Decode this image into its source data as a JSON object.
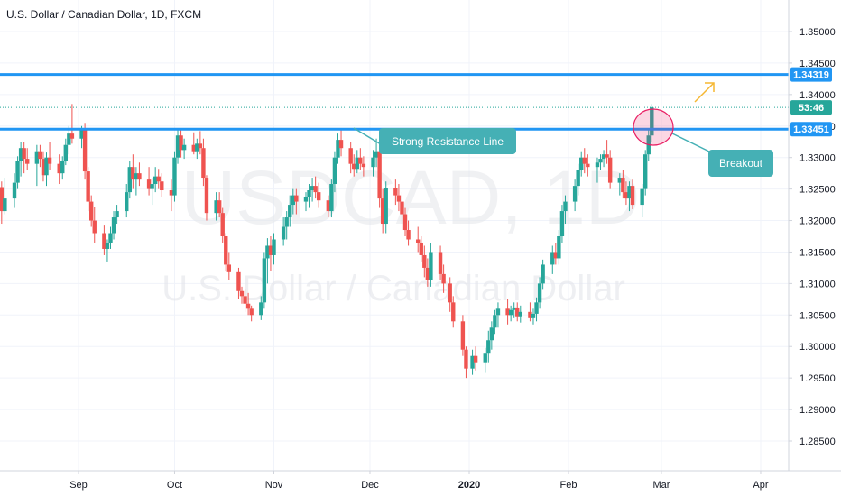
{
  "title": "U.S. Dollar / Canadian Dollar, 1D, FXCM",
  "watermark": {
    "symbol": "USDCAD, 1D",
    "name": "U.S. Dollar / Canadian Dollar"
  },
  "colors": {
    "up": "#26a69a",
    "down": "#ef5350",
    "line": "#2196f3",
    "callout": "#45b0b5",
    "arrow": "#f5b731",
    "ellipse": "#e91e63"
  },
  "price_ticks": [
    "1.35000",
    "1.34500",
    "1.34000",
    "1.33500",
    "1.33000",
    "1.32500",
    "1.32000",
    "1.31500",
    "1.31000",
    "1.30500",
    "1.30000",
    "1.29500",
    "1.29000",
    "1.28500"
  ],
  "time_ticks": [
    "Sep",
    "Oct",
    "Nov",
    "Dec",
    "2020",
    "Feb",
    "Mar",
    "Apr"
  ],
  "tags": {
    "upper": "1.34319",
    "countdown": "53:46",
    "lower": "1.33451"
  },
  "callouts": {
    "resistance": "Strong Resistance Line",
    "breakout": "Breakout"
  },
  "chart_data": {
    "type": "candlestick",
    "title": "U.S. Dollar / Canadian Dollar, 1D, FXCM",
    "ylim": [
      1.2825,
      1.3545
    ],
    "x_range": [
      "2019-08-08",
      "2020-04-15"
    ],
    "horizontal_lines": [
      {
        "label": "1.34319",
        "value": 1.34319
      },
      {
        "label": "1.33451",
        "value": 1.33451
      }
    ],
    "current_price": 1.33795,
    "ohlc": [
      [
        "2019-08-08",
        1.3253,
        1.3262,
        1.3195,
        1.3215
      ],
      [
        "2019-08-09",
        1.3215,
        1.3268,
        1.321,
        1.3235
      ],
      [
        "2019-08-12",
        1.3235,
        1.3275,
        1.322,
        1.326
      ],
      [
        "2019-08-13",
        1.326,
        1.3302,
        1.325,
        1.3295
      ],
      [
        "2019-08-14",
        1.3295,
        1.3325,
        1.327,
        1.3315
      ],
      [
        "2019-08-15",
        1.3315,
        1.3325,
        1.3275,
        1.3298
      ],
      [
        "2019-08-16",
        1.3298,
        1.3315,
        1.328,
        1.329
      ],
      [
        "2019-08-19",
        1.329,
        1.332,
        1.3255,
        1.331
      ],
      [
        "2019-08-20",
        1.331,
        1.332,
        1.3285,
        1.3298
      ],
      [
        "2019-08-21",
        1.3298,
        1.331,
        1.3262,
        1.3272
      ],
      [
        "2019-08-22",
        1.3272,
        1.3308,
        1.3255,
        1.33
      ],
      [
        "2019-08-23",
        1.33,
        1.3325,
        1.328,
        1.329
      ],
      [
        "2019-08-26",
        1.329,
        1.3305,
        1.3258,
        1.3275
      ],
      [
        "2019-08-27",
        1.3275,
        1.3302,
        1.3265,
        1.3295
      ],
      [
        "2019-08-28",
        1.3295,
        1.333,
        1.3288,
        1.332
      ],
      [
        "2019-08-29",
        1.332,
        1.335,
        1.3305,
        1.3338
      ],
      [
        "2019-08-30",
        1.3338,
        1.3385,
        1.3322,
        1.333
      ],
      [
        "2019-09-02",
        1.333,
        1.335,
        1.3315,
        1.3345
      ],
      [
        "2019-09-03",
        1.3345,
        1.3355,
        1.3265,
        1.3278
      ],
      [
        "2019-09-04",
        1.3278,
        1.3285,
        1.3215,
        1.323
      ],
      [
        "2019-09-05",
        1.323,
        1.324,
        1.319,
        1.32
      ],
      [
        "2019-09-06",
        1.32,
        1.3222,
        1.3165,
        1.318
      ],
      [
        "2019-09-09",
        1.318,
        1.3192,
        1.3145,
        1.3155
      ],
      [
        "2019-09-10",
        1.3155,
        1.317,
        1.3135,
        1.3165
      ],
      [
        "2019-09-11",
        1.3165,
        1.319,
        1.3155,
        1.318
      ],
      [
        "2019-09-12",
        1.318,
        1.3215,
        1.317,
        1.3205
      ],
      [
        "2019-09-13",
        1.3205,
        1.3225,
        1.3195,
        1.3215
      ],
      [
        "2019-09-16",
        1.3215,
        1.3258,
        1.3205,
        1.3245
      ],
      [
        "2019-09-17",
        1.3245,
        1.3295,
        1.3235,
        1.3285
      ],
      [
        "2019-09-18",
        1.3285,
        1.3305,
        1.325,
        1.3265
      ],
      [
        "2019-09-19",
        1.3265,
        1.3285,
        1.324,
        1.3275
      ],
      [
        "2019-09-20",
        1.3275,
        1.3292,
        1.3255,
        1.3265
      ],
      [
        "2019-09-23",
        1.3265,
        1.3285,
        1.324,
        1.325
      ],
      [
        "2019-09-24",
        1.325,
        1.3268,
        1.3225,
        1.3258
      ],
      [
        "2019-09-25",
        1.3258,
        1.3285,
        1.3245,
        1.327
      ],
      [
        "2019-09-26",
        1.327,
        1.3282,
        1.325,
        1.3262
      ],
      [
        "2019-09-27",
        1.3262,
        1.3275,
        1.3238,
        1.3248
      ],
      [
        "2019-09-30",
        1.3248,
        1.3265,
        1.3215,
        1.324
      ],
      [
        "2019-10-01",
        1.324,
        1.331,
        1.323,
        1.33
      ],
      [
        "2019-10-02",
        1.33,
        1.3345,
        1.329,
        1.3335
      ],
      [
        "2019-10-03",
        1.3335,
        1.3345,
        1.33,
        1.3312
      ],
      [
        "2019-10-04",
        1.3312,
        1.333,
        1.3298,
        1.332
      ],
      [
        "2019-10-07",
        1.332,
        1.334,
        1.3305,
        1.331
      ],
      [
        "2019-10-08",
        1.331,
        1.333,
        1.3298,
        1.3322
      ],
      [
        "2019-10-09",
        1.3322,
        1.3342,
        1.3305,
        1.3315
      ],
      [
        "2019-10-10",
        1.3315,
        1.333,
        1.3255,
        1.3268
      ],
      [
        "2019-10-11",
        1.3268,
        1.3272,
        1.32,
        1.3212
      ],
      [
        "2019-10-14",
        1.3212,
        1.3245,
        1.32,
        1.3232
      ],
      [
        "2019-10-15",
        1.3232,
        1.3245,
        1.3205,
        1.3212
      ],
      [
        "2019-10-16",
        1.3212,
        1.322,
        1.3165,
        1.3175
      ],
      [
        "2019-10-17",
        1.3175,
        1.318,
        1.312,
        1.313
      ],
      [
        "2019-10-18",
        1.313,
        1.315,
        1.3105,
        1.3118
      ],
      [
        "2019-10-21",
        1.3118,
        1.3125,
        1.3075,
        1.3088
      ],
      [
        "2019-10-22",
        1.3088,
        1.3095,
        1.3068,
        1.308
      ],
      [
        "2019-10-23",
        1.308,
        1.3092,
        1.3055,
        1.3068
      ],
      [
        "2019-10-24",
        1.3068,
        1.3085,
        1.305,
        1.306
      ],
      [
        "2019-10-25",
        1.306,
        1.3065,
        1.304,
        1.305
      ],
      [
        "2019-10-28",
        1.305,
        1.308,
        1.3042,
        1.307
      ],
      [
        "2019-10-29",
        1.307,
        1.315,
        1.306,
        1.314
      ],
      [
        "2019-10-30",
        1.314,
        1.3172,
        1.31,
        1.316
      ],
      [
        "2019-10-31",
        1.316,
        1.3175,
        1.312,
        1.3145
      ],
      [
        "2019-11-01",
        1.3145,
        1.318,
        1.313,
        1.317
      ],
      [
        "2019-11-04",
        1.317,
        1.3205,
        1.316,
        1.319
      ],
      [
        "2019-11-05",
        1.319,
        1.3215,
        1.317,
        1.3205
      ],
      [
        "2019-11-06",
        1.3205,
        1.324,
        1.319,
        1.3225
      ],
      [
        "2019-11-07",
        1.3225,
        1.325,
        1.321,
        1.324
      ],
      [
        "2019-11-08",
        1.324,
        1.325,
        1.321,
        1.323
      ],
      [
        "2019-11-11",
        1.323,
        1.3245,
        1.3215,
        1.3238
      ],
      [
        "2019-11-12",
        1.3238,
        1.3258,
        1.322,
        1.3248
      ],
      [
        "2019-11-13",
        1.3248,
        1.3268,
        1.323,
        1.3255
      ],
      [
        "2019-11-14",
        1.3255,
        1.327,
        1.3235,
        1.3245
      ],
      [
        "2019-11-15",
        1.3245,
        1.326,
        1.322,
        1.3232
      ],
      [
        "2019-11-18",
        1.3232,
        1.324,
        1.3205,
        1.3215
      ],
      [
        "2019-11-19",
        1.3215,
        1.3265,
        1.3205,
        1.3258
      ],
      [
        "2019-11-20",
        1.3258,
        1.331,
        1.3245,
        1.33
      ],
      [
        "2019-11-21",
        1.33,
        1.3338,
        1.329,
        1.3328
      ],
      [
        "2019-11-22",
        1.3328,
        1.3345,
        1.3302,
        1.3315
      ],
      [
        "2019-11-25",
        1.3315,
        1.3325,
        1.3275,
        1.329
      ],
      [
        "2019-11-26",
        1.329,
        1.3305,
        1.327,
        1.3282
      ],
      [
        "2019-11-27",
        1.3282,
        1.3312,
        1.3275,
        1.33
      ],
      [
        "2019-11-28",
        1.33,
        1.3315,
        1.328,
        1.329
      ],
      [
        "2019-11-29",
        1.329,
        1.3302,
        1.327,
        1.3285
      ],
      [
        "2019-12-02",
        1.3285,
        1.3312,
        1.327,
        1.33
      ],
      [
        "2019-12-03",
        1.33,
        1.333,
        1.3285,
        1.331
      ],
      [
        "2019-12-04",
        1.331,
        1.332,
        1.322,
        1.3235
      ],
      [
        "2019-12-05",
        1.3235,
        1.325,
        1.318,
        1.3195
      ],
      [
        "2019-12-06",
        1.3195,
        1.3262,
        1.318,
        1.3252
      ],
      [
        "2019-12-09",
        1.3252,
        1.3265,
        1.3225,
        1.324
      ],
      [
        "2019-12-10",
        1.324,
        1.3258,
        1.3215,
        1.323
      ],
      [
        "2019-12-11",
        1.323,
        1.3245,
        1.3195,
        1.321
      ],
      [
        "2019-12-12",
        1.321,
        1.322,
        1.3175,
        1.3185
      ],
      [
        "2019-12-13",
        1.3185,
        1.32,
        1.316,
        1.317
      ],
      [
        "2019-12-16",
        1.317,
        1.319,
        1.315,
        1.3165
      ],
      [
        "2019-12-17",
        1.3165,
        1.3175,
        1.3135,
        1.3145
      ],
      [
        "2019-12-18",
        1.3145,
        1.316,
        1.311,
        1.3125
      ],
      [
        "2019-12-19",
        1.3125,
        1.314,
        1.3095,
        1.3105
      ],
      [
        "2019-12-20",
        1.3105,
        1.3165,
        1.3095,
        1.315
      ],
      [
        "2019-12-23",
        1.315,
        1.316,
        1.3105,
        1.3115
      ],
      [
        "2019-12-24",
        1.3115,
        1.313,
        1.3085,
        1.31
      ],
      [
        "2019-12-26",
        1.31,
        1.311,
        1.3055,
        1.307
      ],
      [
        "2019-12-27",
        1.307,
        1.308,
        1.303,
        1.304
      ],
      [
        "2019-12-30",
        1.304,
        1.305,
        1.2985,
        1.2995
      ],
      [
        "2019-12-31",
        1.2995,
        1.3,
        1.295,
        1.2965
      ],
      [
        "2020-01-02",
        1.2965,
        1.2995,
        1.2955,
        1.2985
      ],
      [
        "2020-01-03",
        1.2985,
        1.3,
        1.2962,
        1.2975
      ],
      [
        "2020-01-06",
        1.2975,
        1.2998,
        1.2958,
        1.299
      ],
      [
        "2020-01-07",
        1.299,
        1.3025,
        1.2975,
        1.301
      ],
      [
        "2020-01-08",
        1.301,
        1.304,
        1.2995,
        1.303
      ],
      [
        "2020-01-09",
        1.303,
        1.3058,
        1.302,
        1.305
      ],
      [
        "2020-01-10",
        1.305,
        1.307,
        1.303,
        1.306
      ],
      [
        "2020-01-13",
        1.306,
        1.3075,
        1.3035,
        1.305
      ],
      [
        "2020-01-14",
        1.305,
        1.3065,
        1.304,
        1.3058
      ],
      [
        "2020-01-15",
        1.3058,
        1.307,
        1.3045,
        1.3062
      ],
      [
        "2020-01-16",
        1.3062,
        1.307,
        1.304,
        1.3048
      ],
      [
        "2020-01-17",
        1.3048,
        1.3065,
        1.3038,
        1.3055
      ],
      [
        "2020-01-20",
        1.3055,
        1.307,
        1.304,
        1.3045
      ],
      [
        "2020-01-21",
        1.3045,
        1.306,
        1.3035,
        1.3052
      ],
      [
        "2020-01-22",
        1.3052,
        1.3078,
        1.304,
        1.307
      ],
      [
        "2020-01-23",
        1.307,
        1.311,
        1.306,
        1.31
      ],
      [
        "2020-01-24",
        1.31,
        1.3138,
        1.309,
        1.313
      ],
      [
        "2020-01-27",
        1.313,
        1.316,
        1.3115,
        1.315
      ],
      [
        "2020-01-28",
        1.315,
        1.3165,
        1.313,
        1.314
      ],
      [
        "2020-01-29",
        1.314,
        1.3185,
        1.313,
        1.3175
      ],
      [
        "2020-01-30",
        1.3175,
        1.3225,
        1.3165,
        1.3215
      ],
      [
        "2020-01-31",
        1.3215,
        1.324,
        1.3195,
        1.323
      ],
      [
        "2020-02-03",
        1.323,
        1.3265,
        1.3215,
        1.3255
      ],
      [
        "2020-02-04",
        1.3255,
        1.329,
        1.324,
        1.328
      ],
      [
        "2020-02-05",
        1.328,
        1.331,
        1.327,
        1.33
      ],
      [
        "2020-02-06",
        1.33,
        1.3315,
        1.3275,
        1.329
      ],
      [
        "2020-02-07",
        1.329,
        1.3305,
        1.327,
        1.3285
      ],
      [
        "2020-02-10",
        1.3285,
        1.33,
        1.326,
        1.3292
      ],
      [
        "2020-02-11",
        1.3292,
        1.3305,
        1.328,
        1.3298
      ],
      [
        "2020-02-12",
        1.3298,
        1.3312,
        1.3285,
        1.3305
      ],
      [
        "2020-02-13",
        1.3305,
        1.3328,
        1.329,
        1.33
      ],
      [
        "2020-02-14",
        1.33,
        1.3312,
        1.325,
        1.326
      ],
      [
        "2020-02-17",
        1.326,
        1.3275,
        1.324,
        1.3268
      ],
      [
        "2020-02-18",
        1.3268,
        1.328,
        1.3235,
        1.3245
      ],
      [
        "2020-02-19",
        1.3245,
        1.3262,
        1.3225,
        1.3235
      ],
      [
        "2020-02-20",
        1.3235,
        1.3262,
        1.3215,
        1.3255
      ],
      [
        "2020-02-21",
        1.3255,
        1.3265,
        1.3218,
        1.3225
      ],
      [
        "2020-02-24",
        1.3225,
        1.3258,
        1.3205,
        1.325
      ],
      [
        "2020-02-25",
        1.325,
        1.3312,
        1.324,
        1.3305
      ],
      [
        "2020-02-26",
        1.3305,
        1.3345,
        1.3295,
        1.3335
      ],
      [
        "2020-02-27",
        1.3335,
        1.3385,
        1.3325,
        1.33795
      ]
    ],
    "annotations": [
      {
        "text": "Strong Resistance Line"
      },
      {
        "text": "Breakout"
      }
    ]
  }
}
